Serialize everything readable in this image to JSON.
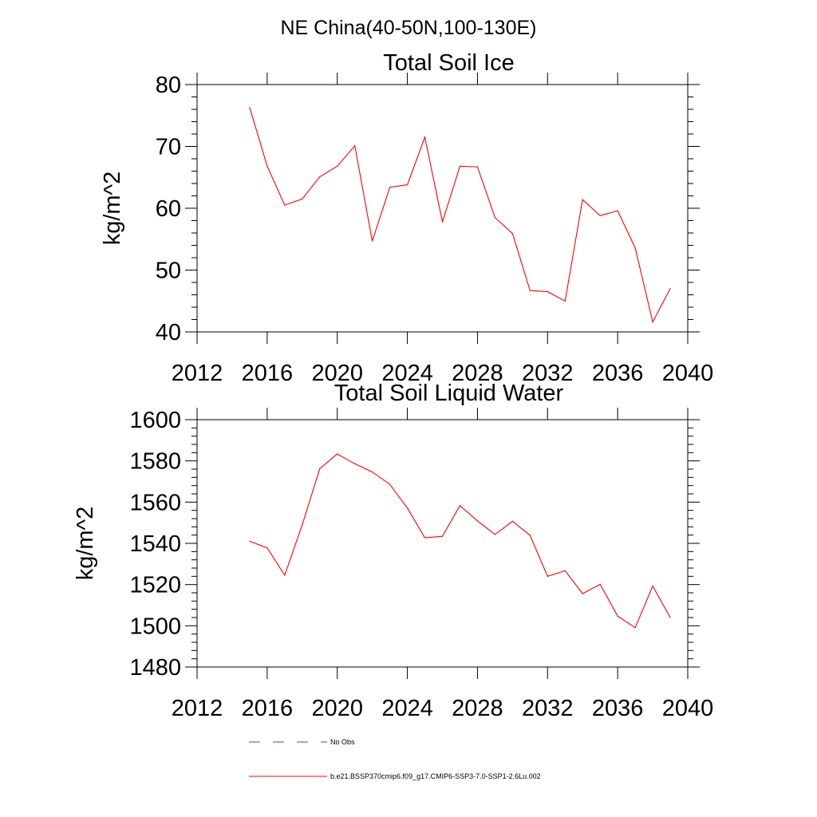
{
  "figure": {
    "title": "NE China(40-50N,100-130E)",
    "line_color": "#ff0000",
    "obs_color": "#4a4a8a"
  },
  "chart_data": [
    {
      "type": "line",
      "title": "Total Soil Ice",
      "ylabel": "kg/m^2",
      "xlabel": "",
      "xlim": [
        2012,
        2040
      ],
      "ylim": [
        40,
        80
      ],
      "xticks": [
        2012,
        2016,
        2020,
        2024,
        2028,
        2032,
        2036,
        2040
      ],
      "yticks": [
        40,
        50,
        60,
        70,
        80
      ],
      "x": [
        2015,
        2016,
        2017,
        2018,
        2019,
        2020,
        2021,
        2022,
        2023,
        2024,
        2025,
        2026,
        2027,
        2028,
        2029,
        2030,
        2031,
        2032,
        2033,
        2034,
        2035,
        2036,
        2037,
        2038,
        2039
      ],
      "series": [
        {
          "name": "b.e21.BSSP370cmip6.f09_g17.CMIP6-SSP3-7.0-SSP1-2.6Lu.002",
          "values": [
            76.3,
            66.8,
            60.5,
            61.5,
            65.1,
            66.8,
            70.1,
            54.7,
            63.4,
            63.8,
            71.5,
            57.8,
            66.8,
            66.7,
            58.5,
            55.9,
            46.7,
            46.5,
            45.0,
            61.4,
            58.8,
            59.6,
            53.6,
            41.6,
            47.0
          ]
        }
      ]
    },
    {
      "type": "line",
      "title": "Total Soil Liquid Water",
      "ylabel": "kg/m^2",
      "xlabel": "",
      "xlim": [
        2012,
        2040
      ],
      "ylim": [
        1480,
        1600
      ],
      "xticks": [
        2012,
        2016,
        2020,
        2024,
        2028,
        2032,
        2036,
        2040
      ],
      "yticks": [
        1480,
        1500,
        1520,
        1540,
        1560,
        1580,
        1600
      ],
      "x": [
        2015,
        2016,
        2017,
        2018,
        2019,
        2020,
        2021,
        2022,
        2023,
        2024,
        2025,
        2026,
        2027,
        2028,
        2029,
        2030,
        2031,
        2032,
        2033,
        2034,
        2035,
        2036,
        2037,
        2038,
        2039
      ],
      "series": [
        {
          "name": "b.e21.BSSP370cmip6.f09_g17.CMIP6-SSP3-7.0-SSP1-2.6Lu.002",
          "values": [
            1541.0,
            1537.8,
            1524.5,
            1549.0,
            1576.2,
            1583.4,
            1578.6,
            1574.6,
            1568.6,
            1557.1,
            1542.7,
            1543.4,
            1558.3,
            1550.9,
            1544.3,
            1550.7,
            1543.9,
            1524.0,
            1526.7,
            1515.6,
            1520.1,
            1504.7,
            1499.1,
            1519.3,
            1504.0
          ]
        }
      ]
    }
  ],
  "legend": {
    "placement": "bottom",
    "items": [
      {
        "label": "No Obs",
        "style": "dashed"
      },
      {
        "label": "b.e21.BSSP370cmip6.f09_g17.CMIP6-SSP3-7.0-SSP1-2.6Lu.002",
        "style": "solid"
      }
    ]
  }
}
